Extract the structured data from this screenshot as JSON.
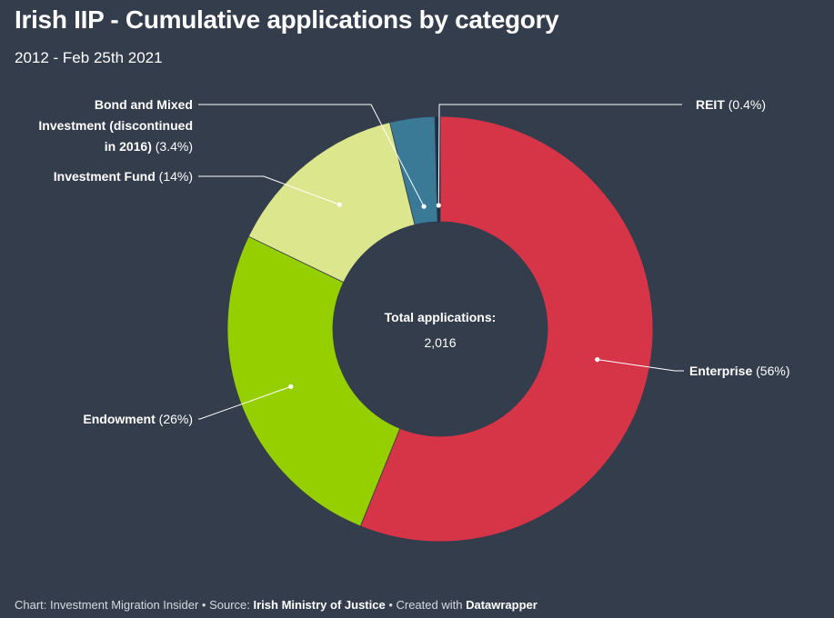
{
  "title": "Irish IIP - Cumulative applications by category",
  "subtitle": "2012 - Feb 25th 2021",
  "chart_data": {
    "type": "pie",
    "donut": true,
    "center_label": "Total applications:",
    "center_value": "2,016",
    "slices": [
      {
        "name": "Enterprise",
        "value": 56,
        "label_pct": "(56%)",
        "color": "#d63447"
      },
      {
        "name": "Endowment",
        "value": 26,
        "label_pct": "(26%)",
        "color": "#96cf00"
      },
      {
        "name": "Investment Fund",
        "value": 14,
        "label_pct": "(14%)",
        "color": "#dbe68d"
      },
      {
        "name": "Bond and Mixed Investment (discontinued in 2016)",
        "name_lines": [
          "Bond and Mixed",
          "Investment (discontinued",
          "in 2016)"
        ],
        "value": 3.4,
        "label_pct": "(3.4%)",
        "color": "#3b7a96"
      },
      {
        "name": "REIT",
        "value": 0.4,
        "label_pct": "(0.4%)",
        "color": "#1a2e45"
      }
    ]
  },
  "footer": {
    "prefix": "Chart: Investment Migration Insider • Source: ",
    "source": "Irish Ministry of Justice",
    "middle": " • Created with ",
    "tool": "Datawrapper"
  }
}
